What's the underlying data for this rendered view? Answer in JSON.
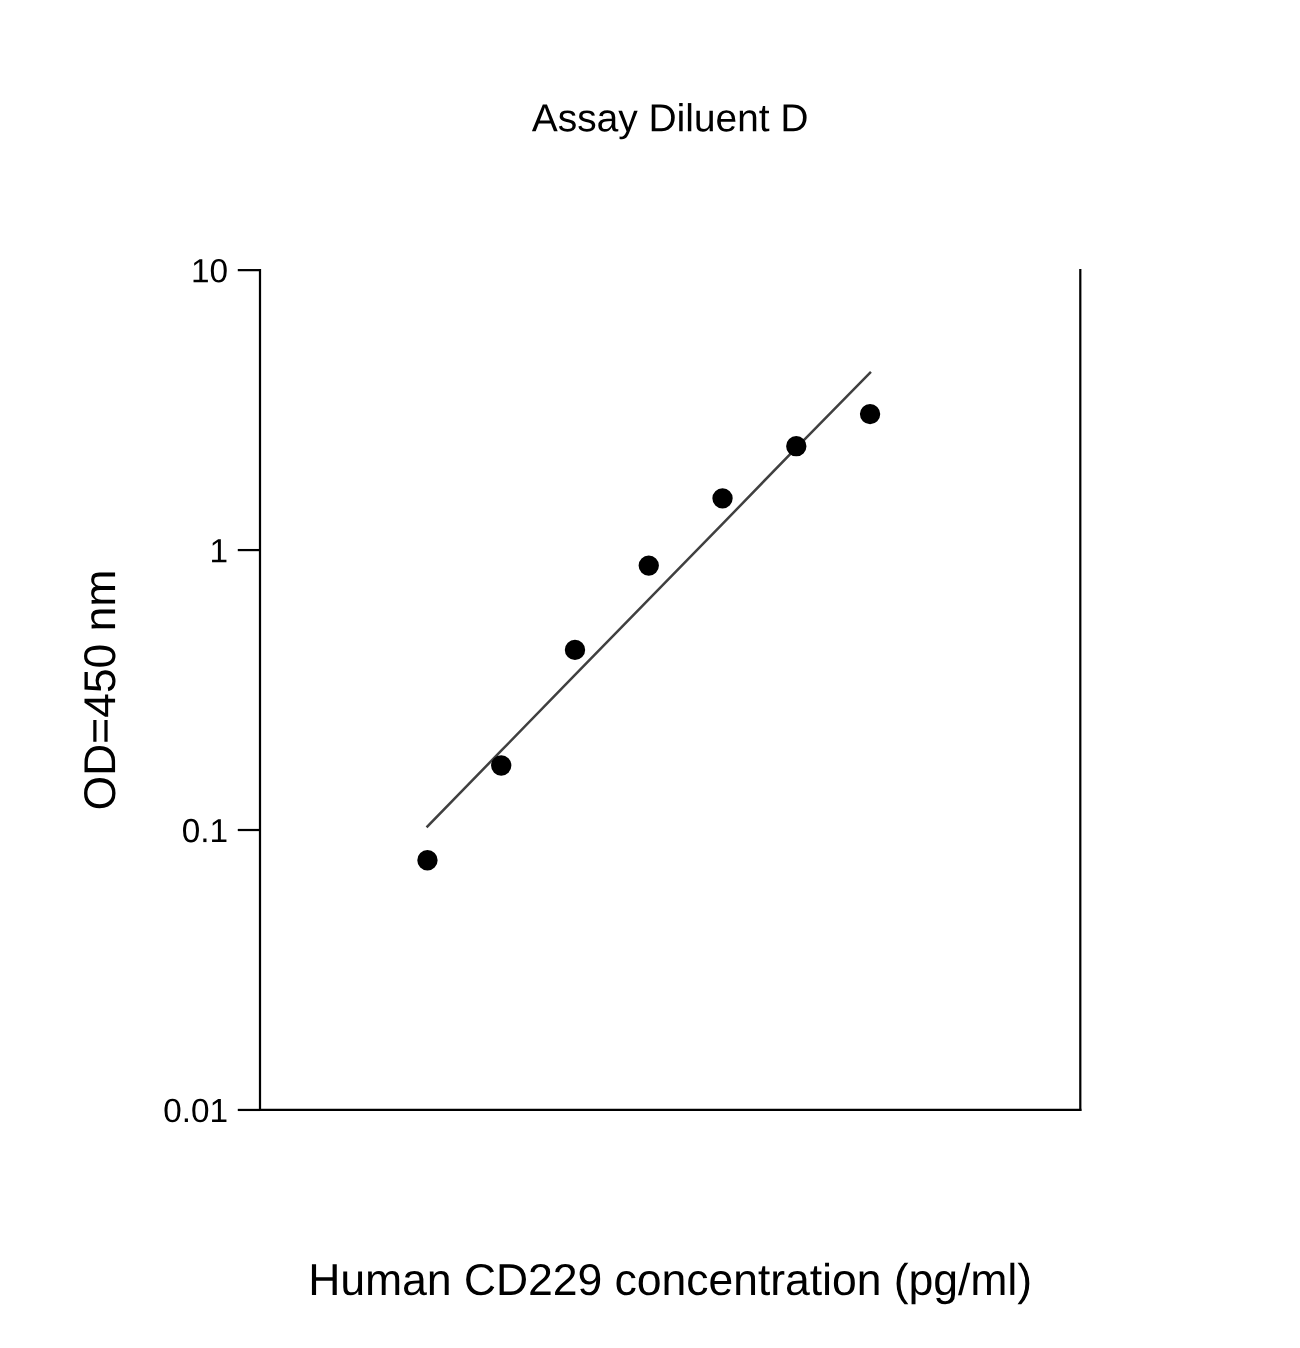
{
  "chart_data": {
    "type": "scatter",
    "title": "Assay Diluent D",
    "xlabel": "Human CD229 concentration (pg/ml)",
    "ylabel": "OD=450 nm",
    "categories": [
      null,
      null,
      null,
      null,
      null,
      null,
      null
    ],
    "series": [
      {
        "color": "#000000",
        "marker": "circle",
        "values": [
          0.078,
          0.17,
          0.44,
          0.88,
          1.53,
          2.35,
          3.06
        ]
      },
      {
        "type": "line",
        "color": "#404040",
        "line_style": "solid",
        "values": [
          0.103,
          0.192,
          0.358,
          0.667,
          1.24,
          2.32,
          4.3
        ]
      }
    ],
    "log": "y",
    "ylim": [
      0.01,
      10
    ],
    "yticks": [
      0.01,
      0.1,
      1,
      10
    ],
    "tick_labels": "y",
    "grid": false,
    "legend": false
  }
}
